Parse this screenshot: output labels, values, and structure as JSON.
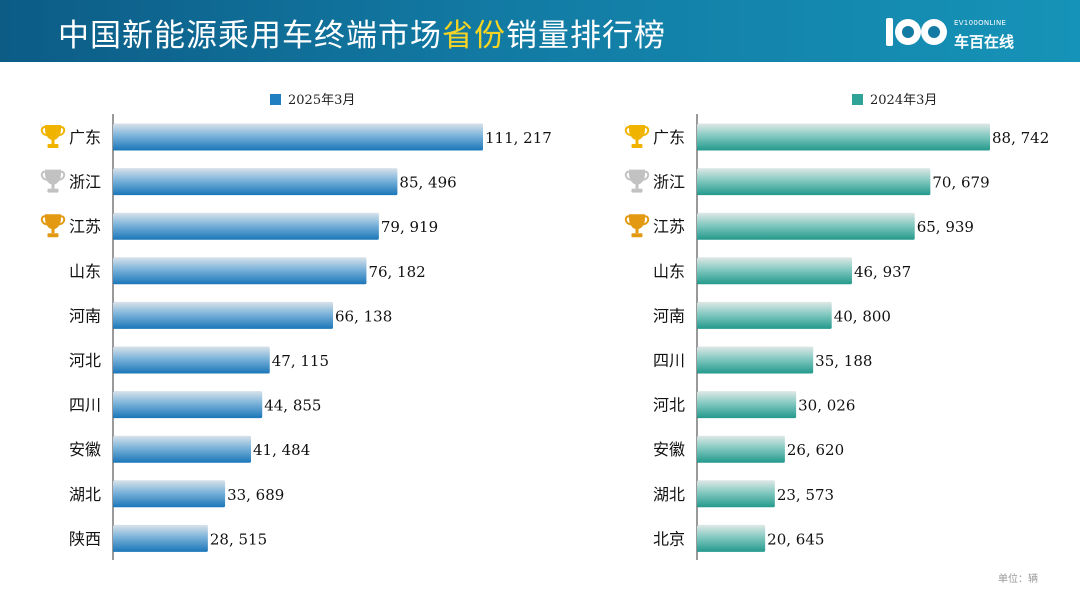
{
  "header": {
    "title_pre": "中国新能源乘用车终端市场",
    "title_highlight": "省份",
    "title_post": "销量排行榜",
    "logo_sub": "EV100ONLINE",
    "logo_main": "车百在线"
  },
  "unit_label": "单位：辆",
  "chart_data": [
    {
      "type": "bar",
      "orientation": "horizontal",
      "legend": "2025年3月",
      "categories": [
        "广东",
        "浙江",
        "江苏",
        "山东",
        "河南",
        "河北",
        "四川",
        "安徽",
        "湖北",
        "陕西"
      ],
      "values": [
        111217,
        85496,
        79919,
        76182,
        66138,
        47115,
        44855,
        41484,
        33689,
        28515
      ],
      "labels": [
        "111, 217",
        "85, 496",
        "79, 919",
        "76, 182",
        "66, 138",
        "47, 115",
        "44, 855",
        "41, 484",
        "33, 689",
        "28, 515"
      ],
      "trophies": [
        "gold",
        "silver",
        "bronze"
      ],
      "color": "#1f7fc0"
    },
    {
      "type": "bar",
      "orientation": "horizontal",
      "legend": "2024年3月",
      "categories": [
        "广东",
        "浙江",
        "江苏",
        "山东",
        "河南",
        "四川",
        "河北",
        "安徽",
        "湖北",
        "北京"
      ],
      "values": [
        88742,
        70679,
        65939,
        46937,
        40800,
        35188,
        30026,
        26620,
        23573,
        20645
      ],
      "labels": [
        "88, 742",
        "70, 679",
        "65, 939",
        "46, 937",
        "40, 800",
        "35, 188",
        "30, 026",
        "26, 620",
        "23, 573",
        "20, 645"
      ],
      "trophies": [
        "gold",
        "silver",
        "bronze"
      ],
      "color": "#2fa398"
    }
  ]
}
